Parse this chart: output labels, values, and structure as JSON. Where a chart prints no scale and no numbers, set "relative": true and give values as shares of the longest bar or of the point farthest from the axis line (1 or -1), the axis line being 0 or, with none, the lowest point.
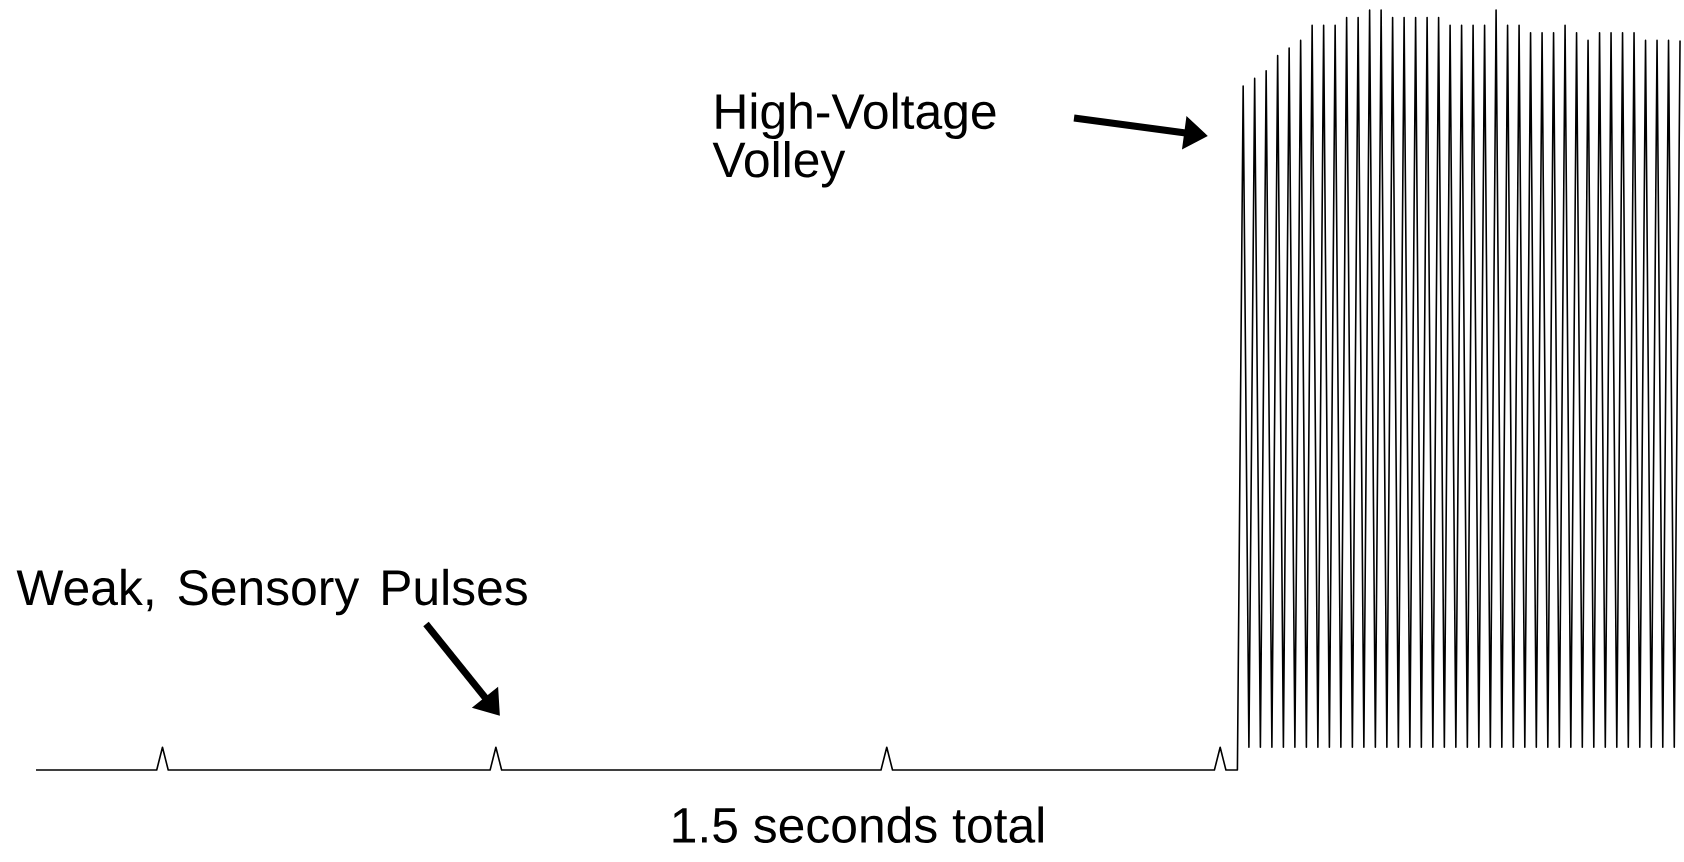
{
  "chart_data": {
    "type": "line",
    "relative": true,
    "color": "#000000",
    "xlabel": "1.5 seconds total",
    "annotations": [
      "High-Voltage Volley",
      "Weak, Sensory Pulses"
    ],
    "categories": [
      null,
      null,
      null,
      null,
      null,
      null,
      null,
      null,
      null,
      null,
      null,
      null,
      null,
      null,
      null,
      null,
      null,
      null,
      null,
      null,
      null,
      null,
      null,
      null,
      null,
      null,
      null,
      null,
      null,
      null,
      null,
      null,
      null,
      null,
      null,
      null,
      null,
      null,
      null,
      null,
      null,
      null,
      null,
      null,
      null,
      null,
      null,
      null,
      null,
      null,
      null,
      null,
      null,
      null,
      null,
      null,
      null,
      null,
      null,
      null,
      null,
      null,
      null,
      null,
      null,
      null,
      null,
      null,
      null,
      null,
      null,
      null,
      null,
      null,
      null,
      null,
      null,
      null,
      null,
      null,
      null,
      null,
      null,
      null,
      null,
      null,
      null,
      null,
      null,
      null,
      null,
      null,
      null,
      null,
      null,
      null,
      null,
      null,
      null,
      null,
      null,
      null,
      null,
      null,
      null,
      null,
      null,
      null,
      null,
      null,
      null,
      null,
      null,
      null,
      null,
      null,
      null,
      null,
      null,
      null,
      null,
      null,
      null,
      null,
      null,
      null,
      null,
      null,
      null,
      null,
      null,
      null,
      null,
      null,
      null,
      null,
      null,
      null,
      null,
      null,
      null,
      null,
      null,
      null,
      null,
      null,
      null,
      null,
      null,
      null,
      null,
      null,
      null,
      null,
      null,
      null,
      null,
      null,
      null,
      null,
      null,
      null,
      null,
      null,
      null,
      null,
      null,
      null,
      null,
      null,
      null,
      null,
      null,
      null,
      null,
      null,
      null,
      null,
      null,
      null,
      null,
      null,
      null,
      null,
      null,
      null,
      null,
      null,
      null,
      null,
      null,
      null,
      null,
      null,
      null,
      null,
      null,
      null,
      null,
      null,
      null,
      null,
      null,
      null,
      null,
      null,
      null,
      null,
      null,
      null,
      null,
      null,
      null,
      null,
      null,
      null,
      null,
      null,
      null,
      null,
      null,
      null,
      null,
      null,
      null,
      null,
      null,
      null,
      null,
      null,
      null,
      null,
      null,
      null,
      null,
      null,
      null,
      null,
      null,
      null,
      null,
      null,
      null,
      null,
      null,
      null,
      null,
      null,
      null,
      null,
      null,
      null,
      null,
      null,
      null,
      null,
      null,
      null,
      null,
      null,
      null,
      null,
      null,
      null,
      null,
      null,
      null,
      null,
      null,
      null,
      null,
      null,
      null,
      null,
      null,
      null,
      null,
      null,
      null,
      null,
      null,
      null,
      null,
      null,
      null,
      null,
      null
    ],
    "values": [
      0,
      0,
      0,
      0,
      0,
      0,
      0,
      0,
      0,
      0,
      0,
      0,
      0,
      0,
      0,
      0,
      0,
      0,
      0,
      0,
      0,
      0,
      0.03,
      0,
      0,
      0,
      0,
      0,
      0,
      0,
      0,
      0,
      0,
      0,
      0,
      0,
      0,
      0,
      0,
      0,
      0,
      0,
      0,
      0,
      0,
      0,
      0,
      0,
      0,
      0,
      0,
      0,
      0,
      0,
      0,
      0,
      0,
      0,
      0,
      0,
      0,
      0,
      0,
      0,
      0,
      0,
      0,
      0,
      0,
      0,
      0,
      0,
      0,
      0,
      0,
      0,
      0,
      0,
      0,
      0,
      0.03,
      0,
      0,
      0,
      0,
      0,
      0,
      0,
      0,
      0,
      0,
      0,
      0,
      0,
      0,
      0,
      0,
      0,
      0,
      0,
      0,
      0,
      0,
      0,
      0,
      0,
      0,
      0,
      0,
      0,
      0,
      0,
      0,
      0,
      0,
      0,
      0,
      0,
      0,
      0,
      0,
      0,
      0,
      0,
      0,
      0,
      0,
      0,
      0,
      0,
      0,
      0,
      0,
      0,
      0,
      0,
      0,
      0,
      0,
      0,
      0,
      0,
      0,
      0,
      0,
      0,
      0,
      0,
      0.03,
      0,
      0,
      0,
      0,
      0,
      0,
      0,
      0,
      0,
      0,
      0,
      0,
      0,
      0,
      0,
      0,
      0,
      0,
      0,
      0,
      0,
      0,
      0,
      0,
      0,
      0,
      0,
      0,
      0,
      0,
      0,
      0,
      0,
      0,
      0,
      0,
      0,
      0,
      0,
      0,
      0,
      0,
      0,
      0,
      0,
      0,
      0,
      0,
      0,
      0,
      0,
      0,
      0,
      0,
      0,
      0,
      0,
      0.03,
      0,
      0,
      0,
      0.9,
      0.03,
      0.91,
      0.03,
      0.92,
      0.03,
      0.94,
      0.03,
      0.95,
      0.03,
      0.96,
      0.03,
      0.98,
      0.03,
      0.98,
      0.03,
      0.98,
      0.03,
      0.99,
      0.03,
      0.99,
      0.03,
      1,
      0.03,
      1,
      0.03,
      0.99,
      0.03,
      0.99,
      0.03,
      0.99,
      0.03,
      0.99,
      0.03,
      0.99,
      0.03,
      0.98,
      0.03,
      0.98,
      0.03,
      0.98,
      0.03,
      0.98,
      0.03,
      1,
      0.03,
      0.98,
      0.03,
      0.98,
      0.03,
      0.97,
      0.03,
      0.97,
      0.03,
      0.97,
      0.03,
      0.98,
      0.03,
      0.97,
      0.03,
      0.96,
      0.03,
      0.97,
      0.03,
      0.97,
      0.03,
      0.97,
      0.03,
      0.97,
      0.03,
      0.96,
      0.03,
      0.96,
      0.03,
      0.96,
      0.03,
      0.96
    ]
  }
}
